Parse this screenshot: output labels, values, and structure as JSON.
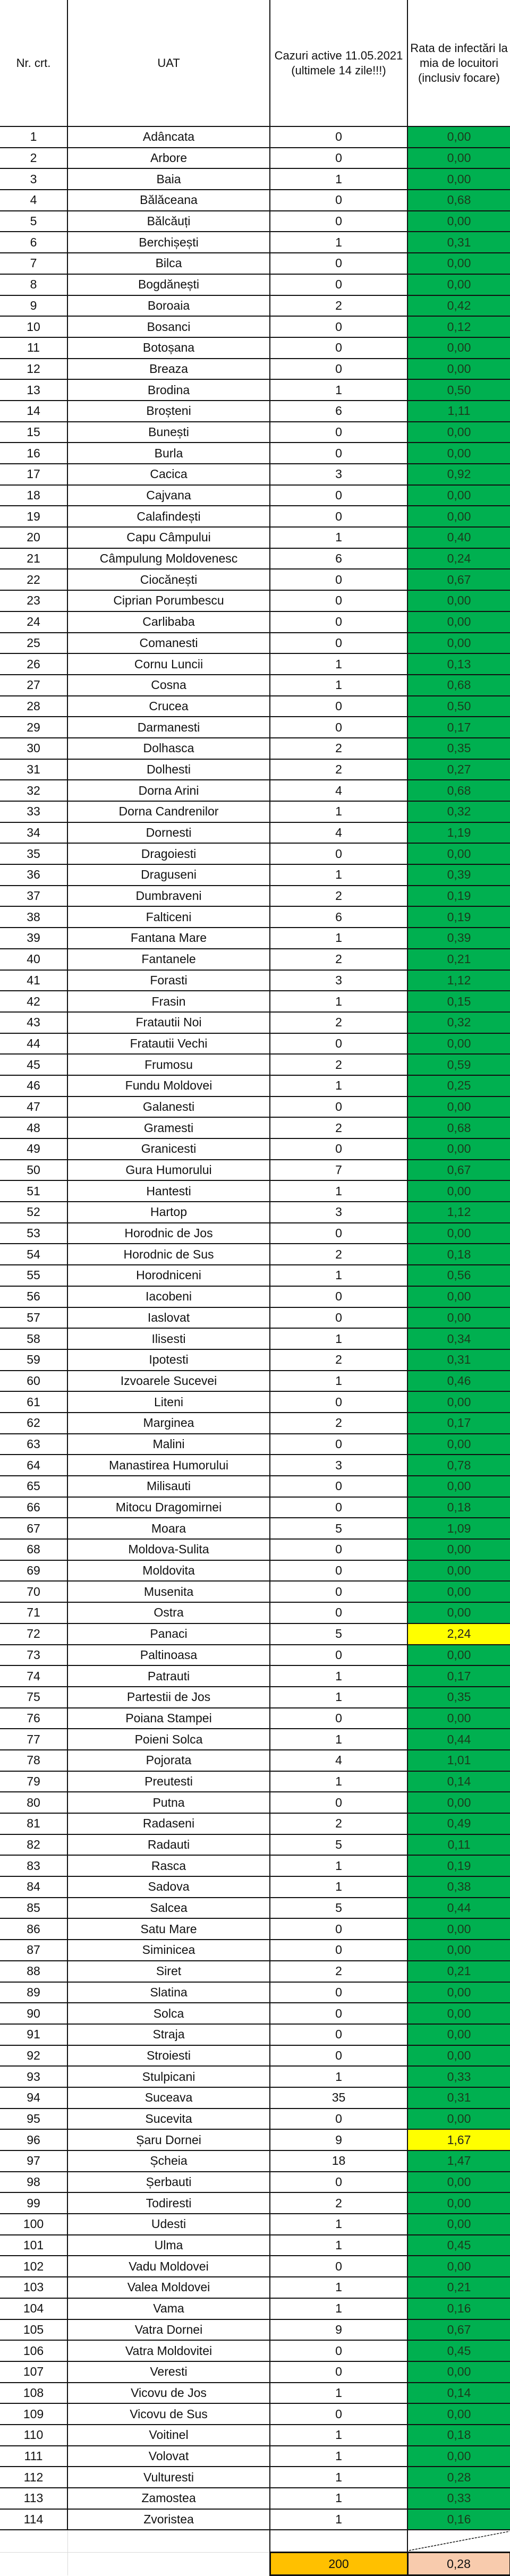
{
  "header": {
    "nr": "Nr. crt.",
    "uat": "UAT",
    "cases": "Cazuri active 11.05.2021 (ultimele 14 zile!!!)",
    "rate": "Rata de infectări la mia de locuitori (inclusiv focare)"
  },
  "colors": {
    "low": "#00b050",
    "high": "#ffff00",
    "total_cases": "#ffc000",
    "total_rate": "#f8cbad"
  },
  "rows": [
    [
      "1",
      "Adâncata",
      "0",
      "0,00"
    ],
    [
      "2",
      "Arbore",
      "0",
      "0,00"
    ],
    [
      "3",
      "Baia",
      "1",
      "0,00"
    ],
    [
      "4",
      "Bălăceana",
      "0",
      "0,68"
    ],
    [
      "5",
      "Bălcăuți",
      "0",
      "0,00"
    ],
    [
      "6",
      "Berchișești",
      "1",
      "0,31"
    ],
    [
      "7",
      "Bilca",
      "0",
      "0,00"
    ],
    [
      "8",
      "Bogdănești",
      "0",
      "0,00"
    ],
    [
      "9",
      "Boroaia",
      "2",
      "0,42"
    ],
    [
      "10",
      "Bosanci",
      "0",
      "0,12"
    ],
    [
      "11",
      "Botoșana",
      "0",
      "0,00"
    ],
    [
      "12",
      "Breaza",
      "0",
      "0,00"
    ],
    [
      "13",
      "Brodina",
      "1",
      "0,50"
    ],
    [
      "14",
      "Broșteni",
      "6",
      "1,11"
    ],
    [
      "15",
      "Bunești",
      "0",
      "0,00"
    ],
    [
      "16",
      "Burla",
      "0",
      "0,00"
    ],
    [
      "17",
      "Cacica",
      "3",
      "0,92"
    ],
    [
      "18",
      "Cajvana",
      "0",
      "0,00"
    ],
    [
      "19",
      "Calafindești",
      "0",
      "0,00"
    ],
    [
      "20",
      "Capu Câmpului",
      "1",
      "0,40"
    ],
    [
      "21",
      "Câmpulung Moldovenesc",
      "6",
      "0,24"
    ],
    [
      "22",
      "Ciocănești",
      "0",
      "0,67"
    ],
    [
      "23",
      "Ciprian Porumbescu",
      "0",
      "0,00"
    ],
    [
      "24",
      "Carlibaba",
      "0",
      "0,00"
    ],
    [
      "25",
      "Comanesti",
      "0",
      "0,00"
    ],
    [
      "26",
      "Cornu Luncii",
      "1",
      "0,13"
    ],
    [
      "27",
      "Cosna",
      "1",
      "0,68"
    ],
    [
      "28",
      "Crucea",
      "0",
      "0,50"
    ],
    [
      "29",
      "Darmanesti",
      "0",
      "0,17"
    ],
    [
      "30",
      "Dolhasca",
      "2",
      "0,35"
    ],
    [
      "31",
      "Dolhesti",
      "2",
      "0,27"
    ],
    [
      "32",
      "Dorna Arini",
      "4",
      "0,68"
    ],
    [
      "33",
      "Dorna Candrenilor",
      "1",
      "0,32"
    ],
    [
      "34",
      "Dornesti",
      "4",
      "1,19"
    ],
    [
      "35",
      "Dragoiesti",
      "0",
      "0,00"
    ],
    [
      "36",
      "Draguseni",
      "1",
      "0,39"
    ],
    [
      "37",
      "Dumbraveni",
      "2",
      "0,19"
    ],
    [
      "38",
      "Falticeni",
      "6",
      "0,19"
    ],
    [
      "39",
      "Fantana Mare",
      "1",
      "0,39"
    ],
    [
      "40",
      "Fantanele",
      "2",
      "0,21"
    ],
    [
      "41",
      "Forasti",
      "3",
      "1,12"
    ],
    [
      "42",
      "Frasin",
      "1",
      "0,15"
    ],
    [
      "43",
      "Fratautii Noi",
      "2",
      "0,32"
    ],
    [
      "44",
      "Fratautii Vechi",
      "0",
      "0,00"
    ],
    [
      "45",
      "Frumosu",
      "2",
      "0,59"
    ],
    [
      "46",
      "Fundu Moldovei",
      "1",
      "0,25"
    ],
    [
      "47",
      "Galanesti",
      "0",
      "0,00"
    ],
    [
      "48",
      "Gramesti",
      "2",
      "0,68"
    ],
    [
      "49",
      "Granicesti",
      "0",
      "0,00"
    ],
    [
      "50",
      "Gura Humorului",
      "7",
      "0,67"
    ],
    [
      "51",
      "Hantesti",
      "1",
      "0,00"
    ],
    [
      "52",
      "Hartop",
      "3",
      "1,12"
    ],
    [
      "53",
      "Horodnic de Jos",
      "0",
      "0,00"
    ],
    [
      "54",
      "Horodnic de Sus",
      "2",
      "0,18"
    ],
    [
      "55",
      "Horodniceni",
      "1",
      "0,56"
    ],
    [
      "56",
      "Iacobeni",
      "0",
      "0,00"
    ],
    [
      "57",
      "Iaslovat",
      "0",
      "0,00"
    ],
    [
      "58",
      "Ilisesti",
      "1",
      "0,34"
    ],
    [
      "59",
      "Ipotesti",
      "2",
      "0,31"
    ],
    [
      "60",
      "Izvoarele Sucevei",
      "1",
      "0,46"
    ],
    [
      "61",
      "Liteni",
      "0",
      "0,00"
    ],
    [
      "62",
      "Marginea",
      "2",
      "0,17"
    ],
    [
      "63",
      "Malini",
      "0",
      "0,00"
    ],
    [
      "64",
      "Manastirea Humorului",
      "3",
      "0,78"
    ],
    [
      "65",
      "Milisauti",
      "0",
      "0,00"
    ],
    [
      "66",
      "Mitocu Dragomirnei",
      "0",
      "0,18"
    ],
    [
      "67",
      "Moara",
      "5",
      "1,09"
    ],
    [
      "68",
      "Moldova-Sulita",
      "0",
      "0,00"
    ],
    [
      "69",
      "Moldovita",
      "0",
      "0,00"
    ],
    [
      "70",
      "Musenita",
      "0",
      "0,00"
    ],
    [
      "71",
      "Ostra",
      "0",
      "0,00"
    ],
    [
      "72",
      "Panaci",
      "5",
      "2,24",
      "high"
    ],
    [
      "73",
      "Paltinoasa",
      "0",
      "0,00"
    ],
    [
      "74",
      "Patrauti",
      "1",
      "0,17"
    ],
    [
      "75",
      "Partestii de Jos",
      "1",
      "0,35"
    ],
    [
      "76",
      "Poiana Stampei",
      "0",
      "0,00"
    ],
    [
      "77",
      "Poieni Solca",
      "1",
      "0,44"
    ],
    [
      "78",
      "Pojorata",
      "4",
      "1,01"
    ],
    [
      "79",
      "Preutesti",
      "1",
      "0,14"
    ],
    [
      "80",
      "Putna",
      "0",
      "0,00"
    ],
    [
      "81",
      "Radaseni",
      "2",
      "0,49"
    ],
    [
      "82",
      "Radauti",
      "5",
      "0,11"
    ],
    [
      "83",
      "Rasca",
      "1",
      "0,19"
    ],
    [
      "84",
      "Sadova",
      "1",
      "0,38"
    ],
    [
      "85",
      "Salcea",
      "5",
      "0,44"
    ],
    [
      "86",
      "Satu Mare",
      "0",
      "0,00"
    ],
    [
      "87",
      "Siminicea",
      "0",
      "0,00"
    ],
    [
      "88",
      "Siret",
      "2",
      "0,21"
    ],
    [
      "89",
      "Slatina",
      "0",
      "0,00"
    ],
    [
      "90",
      "Solca",
      "0",
      "0,00"
    ],
    [
      "91",
      "Straja",
      "0",
      "0,00"
    ],
    [
      "92",
      "Stroiesti",
      "0",
      "0,00"
    ],
    [
      "93",
      "Stulpicani",
      "1",
      "0,33"
    ],
    [
      "94",
      "Suceava",
      "35",
      "0,31"
    ],
    [
      "95",
      "Sucevita",
      "0",
      "0,00"
    ],
    [
      "96",
      "Șaru Dornei",
      "9",
      "1,67",
      "high"
    ],
    [
      "97",
      "Șcheia",
      "18",
      "1,47"
    ],
    [
      "98",
      "Șerbauti",
      "0",
      "0,00"
    ],
    [
      "99",
      "Todiresti",
      "2",
      "0,00"
    ],
    [
      "100",
      "Udesti",
      "1",
      "0,00"
    ],
    [
      "101",
      "Ulma",
      "1",
      "0,45"
    ],
    [
      "102",
      "Vadu Moldovei",
      "0",
      "0,00"
    ],
    [
      "103",
      "Valea Moldovei",
      "1",
      "0,21"
    ],
    [
      "104",
      "Vama",
      "1",
      "0,16"
    ],
    [
      "105",
      "Vatra Dornei",
      "9",
      "0,67"
    ],
    [
      "106",
      "Vatra Moldovitei",
      "0",
      "0,45"
    ],
    [
      "107",
      "Veresti",
      "0",
      "0,00"
    ],
    [
      "108",
      "Vicovu de Jos",
      "1",
      "0,14"
    ],
    [
      "109",
      "Vicovu de Sus",
      "0",
      "0,00"
    ],
    [
      "110",
      "Voitinel",
      "1",
      "0,18"
    ],
    [
      "111",
      "Volovat",
      "1",
      "0,00"
    ],
    [
      "112",
      "Vulturesti",
      "1",
      "0,28"
    ],
    [
      "113",
      "Zamostea",
      "1",
      "0,33"
    ],
    [
      "114",
      "Zvoristea",
      "1",
      "0,16"
    ]
  ],
  "totals": {
    "cases": "200",
    "rate": "0,28"
  }
}
